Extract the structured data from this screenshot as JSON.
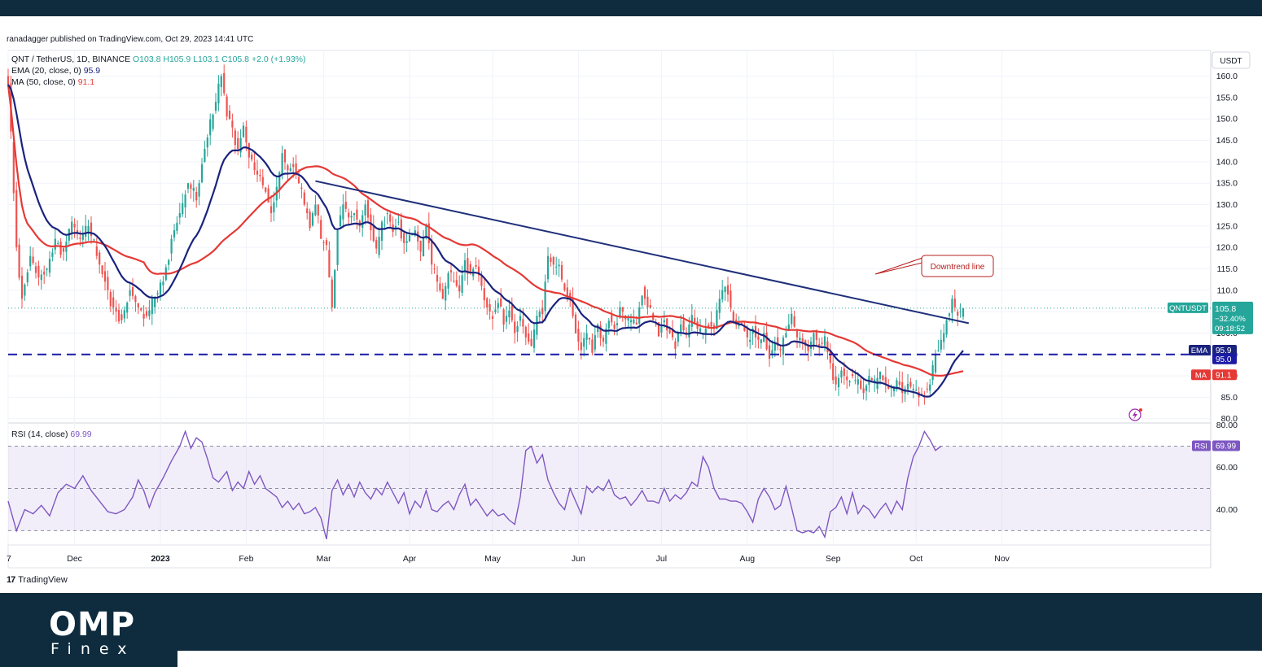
{
  "header": {
    "published": "ranadagger published on TradingView.com, Oct 29, 2023 14:41 UTC"
  },
  "legend": {
    "symbol": "QNT / TetherUS, 1D, BINANCE",
    "ohlc": "O103.8 H105.9 L103.1 C105.8 +2.0 (+1.93%)",
    "ema_label": "EMA (20, close, 0)",
    "ema_value": "95.9",
    "ma_label": "MA (50, close, 0)",
    "ma_value": "91.1",
    "rsi_label": "RSI (14, close)",
    "rsi_value": "69.99"
  },
  "axis": {
    "currency": "USDT"
  },
  "badges": {
    "price_symbol": "QNTUSDT",
    "price": "105.8",
    "change": "−32.40%",
    "countdown": "09:18:52",
    "ema_tag": "EMA",
    "ema_price": "95.9",
    "support_price": "95.0",
    "ma_tag": "MA",
    "ma_price": "91.1",
    "rsi_tag": "RSI",
    "rsi_value": "69.99"
  },
  "annotation": {
    "text": "Downtrend line"
  },
  "footer": {
    "brand": "TradingView"
  },
  "logo": {
    "line1": "OMP",
    "line2": "Finex"
  },
  "colors": {
    "up": "#26a69a",
    "down": "#ef5350",
    "ema": "#1a237e",
    "ma": "#e53935",
    "rsi": "#7e57c2",
    "support": "#1a1aa6",
    "trend": "#1f2f7a"
  },
  "chart_data": {
    "type": "candlestick",
    "price_axis": {
      "ticks": [
        80,
        85,
        90,
        95,
        100,
        105,
        110,
        115,
        120,
        125,
        130,
        135,
        140,
        145,
        150,
        155,
        160
      ],
      "ylim": [
        79,
        166
      ]
    },
    "rsi_axis": {
      "ticks": [
        40,
        60,
        80
      ],
      "ylim": [
        24,
        81
      ],
      "bands": [
        30,
        70
      ]
    },
    "x_ticks": [
      {
        "label": "7",
        "day": 0
      },
      {
        "label": "Dec",
        "day": 24
      },
      {
        "label": "2023",
        "day": 55
      },
      {
        "label": "Feb",
        "day": 86
      },
      {
        "label": "Mar",
        "day": 114
      },
      {
        "label": "Apr",
        "day": 145
      },
      {
        "label": "May",
        "day": 175
      },
      {
        "label": "Jun",
        "day": 206
      },
      {
        "label": "Jul",
        "day": 236
      },
      {
        "label": "Aug",
        "day": 267
      },
      {
        "label": "Sep",
        "day": 298
      },
      {
        "label": "Oct",
        "day": 328
      },
      {
        "label": "Nov",
        "day": 359
      }
    ],
    "close_anchors": [
      [
        0,
        158
      ],
      [
        3,
        120
      ],
      [
        5,
        108
      ],
      [
        8,
        118
      ],
      [
        11,
        113
      ],
      [
        14,
        115
      ],
      [
        17,
        122
      ],
      [
        20,
        119
      ],
      [
        23,
        126
      ],
      [
        26,
        122
      ],
      [
        29,
        125
      ],
      [
        32,
        118
      ],
      [
        35,
        112
      ],
      [
        38,
        106
      ],
      [
        41,
        103
      ],
      [
        44,
        110
      ],
      [
        47,
        106
      ],
      [
        50,
        104
      ],
      [
        53,
        108
      ],
      [
        56,
        112
      ],
      [
        59,
        122
      ],
      [
        62,
        128
      ],
      [
        65,
        135
      ],
      [
        68,
        131
      ],
      [
        71,
        143
      ],
      [
        74,
        151
      ],
      [
        77,
        160
      ],
      [
        79,
        152
      ],
      [
        81,
        148
      ],
      [
        83,
        143
      ],
      [
        85,
        148
      ],
      [
        87,
        141
      ],
      [
        89,
        138
      ],
      [
        91,
        136
      ],
      [
        93,
        133
      ],
      [
        95,
        128
      ],
      [
        97,
        133
      ],
      [
        99,
        142
      ],
      [
        101,
        138
      ],
      [
        103,
        139
      ],
      [
        105,
        135
      ],
      [
        107,
        130
      ],
      [
        109,
        126
      ],
      [
        111,
        130
      ],
      [
        113,
        122
      ],
      [
        115,
        120
      ],
      [
        117,
        106
      ],
      [
        119,
        124
      ],
      [
        121,
        131
      ],
      [
        123,
        127
      ],
      [
        125,
        128
      ],
      [
        127,
        125
      ],
      [
        129,
        130
      ],
      [
        131,
        124
      ],
      [
        133,
        119
      ],
      [
        135,
        126
      ],
      [
        137,
        128
      ],
      [
        139,
        124
      ],
      [
        141,
        126
      ],
      [
        143,
        121
      ],
      [
        145,
        122
      ],
      [
        147,
        124
      ],
      [
        149,
        119
      ],
      [
        151,
        126
      ],
      [
        153,
        116
      ],
      [
        155,
        112
      ],
      [
        157,
        108
      ],
      [
        159,
        114
      ],
      [
        161,
        112
      ],
      [
        163,
        110
      ],
      [
        165,
        117
      ],
      [
        167,
        114
      ],
      [
        169,
        116
      ],
      [
        171,
        111
      ],
      [
        173,
        106
      ],
      [
        175,
        104
      ],
      [
        177,
        107
      ],
      [
        179,
        102
      ],
      [
        181,
        106
      ],
      [
        183,
        100
      ],
      [
        185,
        104
      ],
      [
        187,
        99
      ],
      [
        189,
        97
      ],
      [
        191,
        104
      ],
      [
        193,
        106
      ],
      [
        195,
        118
      ],
      [
        197,
        116
      ],
      [
        199,
        115
      ],
      [
        201,
        110
      ],
      [
        203,
        108
      ],
      [
        205,
        100
      ],
      [
        207,
        96
      ],
      [
        209,
        100
      ],
      [
        211,
        97
      ],
      [
        213,
        102
      ],
      [
        215,
        98
      ],
      [
        217,
        104
      ],
      [
        219,
        101
      ],
      [
        221,
        106
      ],
      [
        223,
        104
      ],
      [
        225,
        103
      ],
      [
        227,
        102
      ],
      [
        229,
        110
      ],
      [
        231,
        106
      ],
      [
        233,
        103
      ],
      [
        235,
        101
      ],
      [
        237,
        103
      ],
      [
        239,
        100
      ],
      [
        241,
        98
      ],
      [
        243,
        102
      ],
      [
        245,
        100
      ],
      [
        247,
        104
      ],
      [
        249,
        101
      ],
      [
        251,
        100
      ],
      [
        253,
        102
      ],
      [
        255,
        101
      ],
      [
        257,
        108
      ],
      [
        259,
        112
      ],
      [
        261,
        106
      ],
      [
        263,
        102
      ],
      [
        265,
        102
      ],
      [
        267,
        99
      ],
      [
        269,
        101
      ],
      [
        271,
        97
      ],
      [
        273,
        100
      ],
      [
        275,
        94
      ],
      [
        277,
        98
      ],
      [
        279,
        96
      ],
      [
        281,
        100
      ],
      [
        283,
        104
      ],
      [
        285,
        99
      ],
      [
        287,
        98
      ],
      [
        289,
        96
      ],
      [
        291,
        100
      ],
      [
        293,
        97
      ],
      [
        295,
        98
      ],
      [
        297,
        93
      ],
      [
        299,
        88
      ],
      [
        301,
        91
      ],
      [
        303,
        89
      ],
      [
        305,
        90
      ],
      [
        307,
        88
      ],
      [
        309,
        86
      ],
      [
        311,
        90
      ],
      [
        313,
        88
      ],
      [
        315,
        91
      ],
      [
        317,
        88
      ],
      [
        319,
        86
      ],
      [
        321,
        89
      ],
      [
        323,
        86
      ],
      [
        325,
        88
      ],
      [
        327,
        87
      ],
      [
        329,
        85
      ],
      [
        331,
        86
      ],
      [
        333,
        88
      ],
      [
        335,
        95
      ],
      [
        337,
        97
      ],
      [
        339,
        103
      ],
      [
        341,
        108
      ],
      [
        343,
        104
      ],
      [
        345,
        106
      ]
    ],
    "ohlc_last": {
      "open": 103.8,
      "high": 105.9,
      "low": 103.1,
      "close": 105.8
    },
    "ema20_last": 95.9,
    "ma50_last": 91.1,
    "support_level": 95.0,
    "rsi_anchors": [
      [
        0,
        44
      ],
      [
        3,
        30
      ],
      [
        6,
        40
      ],
      [
        9,
        38
      ],
      [
        12,
        42
      ],
      [
        15,
        37
      ],
      [
        18,
        48
      ],
      [
        21,
        52
      ],
      [
        24,
        50
      ],
      [
        27,
        56
      ],
      [
        30,
        49
      ],
      [
        33,
        44
      ],
      [
        36,
        39
      ],
      [
        39,
        38
      ],
      [
        42,
        40
      ],
      [
        45,
        46
      ],
      [
        47,
        54
      ],
      [
        49,
        49
      ],
      [
        51,
        41
      ],
      [
        53,
        48
      ],
      [
        56,
        55
      ],
      [
        59,
        63
      ],
      [
        62,
        70
      ],
      [
        64,
        77
      ],
      [
        66,
        69
      ],
      [
        68,
        74
      ],
      [
        70,
        72
      ],
      [
        72,
        64
      ],
      [
        74,
        55
      ],
      [
        76,
        53
      ],
      [
        79,
        58
      ],
      [
        81,
        49
      ],
      [
        83,
        53
      ],
      [
        85,
        50
      ],
      [
        87,
        58
      ],
      [
        89,
        52
      ],
      [
        91,
        56
      ],
      [
        93,
        50
      ],
      [
        95,
        48
      ],
      [
        97,
        46
      ],
      [
        99,
        41
      ],
      [
        101,
        44
      ],
      [
        103,
        40
      ],
      [
        105,
        43
      ],
      [
        107,
        38
      ],
      [
        109,
        39
      ],
      [
        111,
        41
      ],
      [
        113,
        36
      ],
      [
        115,
        26
      ],
      [
        117,
        49
      ],
      [
        119,
        54
      ],
      [
        121,
        47
      ],
      [
        123,
        52
      ],
      [
        125,
        46
      ],
      [
        127,
        53
      ],
      [
        129,
        48
      ],
      [
        131,
        45
      ],
      [
        133,
        50
      ],
      [
        135,
        47
      ],
      [
        137,
        53
      ],
      [
        139,
        48
      ],
      [
        141,
        43
      ],
      [
        143,
        48
      ],
      [
        145,
        38
      ],
      [
        147,
        44
      ],
      [
        149,
        41
      ],
      [
        151,
        49
      ],
      [
        153,
        40
      ],
      [
        155,
        39
      ],
      [
        157,
        42
      ],
      [
        159,
        44
      ],
      [
        161,
        40
      ],
      [
        163,
        47
      ],
      [
        165,
        52
      ],
      [
        167,
        42
      ],
      [
        169,
        45
      ],
      [
        171,
        41
      ],
      [
        173,
        37
      ],
      [
        175,
        40
      ],
      [
        177,
        37
      ],
      [
        179,
        38
      ],
      [
        181,
        35
      ],
      [
        183,
        33
      ],
      [
        185,
        46
      ],
      [
        187,
        68
      ],
      [
        189,
        70
      ],
      [
        191,
        62
      ],
      [
        193,
        66
      ],
      [
        195,
        54
      ],
      [
        197,
        48
      ],
      [
        199,
        43
      ],
      [
        201,
        40
      ],
      [
        203,
        50
      ],
      [
        205,
        44
      ],
      [
        207,
        38
      ],
      [
        209,
        51
      ],
      [
        211,
        48
      ],
      [
        213,
        51
      ],
      [
        215,
        49
      ],
      [
        217,
        54
      ],
      [
        219,
        47
      ],
      [
        221,
        45
      ],
      [
        223,
        46
      ],
      [
        225,
        42
      ],
      [
        227,
        45
      ],
      [
        229,
        49
      ],
      [
        231,
        44
      ],
      [
        233,
        44
      ],
      [
        235,
        43
      ],
      [
        237,
        50
      ],
      [
        239,
        44
      ],
      [
        241,
        47
      ],
      [
        243,
        45
      ],
      [
        245,
        48
      ],
      [
        247,
        53
      ],
      [
        249,
        51
      ],
      [
        251,
        65
      ],
      [
        253,
        60
      ],
      [
        255,
        50
      ],
      [
        257,
        45
      ],
      [
        259,
        45
      ],
      [
        261,
        44
      ],
      [
        263,
        44
      ],
      [
        265,
        43
      ],
      [
        267,
        39
      ],
      [
        269,
        34
      ],
      [
        271,
        45
      ],
      [
        273,
        50
      ],
      [
        275,
        46
      ],
      [
        277,
        40
      ],
      [
        279,
        42
      ],
      [
        281,
        51
      ],
      [
        283,
        41
      ],
      [
        285,
        30
      ],
      [
        287,
        29
      ],
      [
        289,
        30
      ],
      [
        291,
        29
      ],
      [
        293,
        32
      ],
      [
        295,
        27
      ],
      [
        297,
        39
      ],
      [
        299,
        41
      ],
      [
        301,
        46
      ],
      [
        303,
        38
      ],
      [
        305,
        48
      ],
      [
        307,
        38
      ],
      [
        309,
        42
      ],
      [
        311,
        40
      ],
      [
        313,
        36
      ],
      [
        315,
        40
      ],
      [
        317,
        43
      ],
      [
        319,
        38
      ],
      [
        321,
        44
      ],
      [
        323,
        40
      ],
      [
        325,
        55
      ],
      [
        327,
        65
      ],
      [
        329,
        70
      ],
      [
        331,
        77
      ],
      [
        333,
        73
      ],
      [
        335,
        68
      ],
      [
        337,
        70
      ]
    ],
    "trendline": {
      "from": {
        "day": 111,
        "price": 135.5
      },
      "to": {
        "day": 347,
        "price": 102.3
      }
    }
  }
}
